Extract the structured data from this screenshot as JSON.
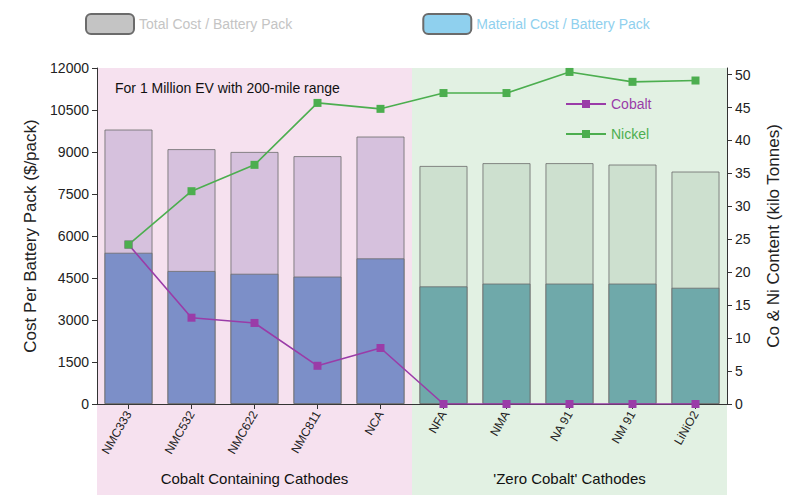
{
  "chart_data": {
    "type": "bar",
    "categories": [
      "NMC333",
      "NMC532",
      "NMC622",
      "NMC811",
      "NCA",
      "NFA",
      "NMA",
      "NA 91",
      "NM 91",
      "LiNiO2"
    ],
    "series": [
      {
        "name": "Total Cost / Battery Pack",
        "type": "bar",
        "color": "#c4c4c4",
        "colors": [
          "#d6c1dd",
          "#d6c1dd",
          "#d6c1dd",
          "#d6c1dd",
          "#d6c1dd",
          "#cde0cf",
          "#cde0cf",
          "#cde0cf",
          "#cde0cf",
          "#cde0cf"
        ],
        "values": [
          9800,
          9100,
          9000,
          8850,
          9550,
          8500,
          8600,
          8600,
          8550,
          8300
        ]
      },
      {
        "name": "Material Cost / Battery Pack",
        "type": "bar",
        "color": "#8fd0ee",
        "colors": [
          "#7c8fc8",
          "#7c8fc8",
          "#7c8fc8",
          "#7c8fc8",
          "#7c8fc8",
          "#6fa9aa",
          "#6fa9aa",
          "#6fa9aa",
          "#6fa9aa",
          "#6fa9aa"
        ],
        "values": [
          5400,
          4750,
          4650,
          4550,
          5200,
          4200,
          4300,
          4300,
          4300,
          4150
        ]
      },
      {
        "name": "Cobalt",
        "type": "line",
        "axis": "y2",
        "color": "#9a3ca8",
        "marker": "square",
        "values": [
          24.2,
          13.1,
          12.3,
          5.8,
          8.5,
          0,
          0,
          0,
          0,
          0
        ]
      },
      {
        "name": "Nickel",
        "type": "line",
        "axis": "y2",
        "color": "#4cae4f",
        "marker": "square",
        "values": [
          24.2,
          32.3,
          36.3,
          45.7,
          44.8,
          47.2,
          47.2,
          50.4,
          48.9,
          49.1
        ]
      }
    ],
    "ylabel": "Cost Per Battery Pack ($/pack)",
    "y2label": "Co & Ni Content (kilo Tonnes)",
    "ylim": [
      0,
      12000
    ],
    "yticks": [
      0,
      1500,
      3000,
      4500,
      6000,
      7500,
      9000,
      10500,
      12000
    ],
    "y2lim": [
      0,
      51
    ],
    "y2ticks": [
      0,
      5,
      10,
      15,
      20,
      25,
      30,
      35,
      40,
      45,
      50
    ],
    "annotations": [
      {
        "text": "For 1 Million EV with 200-mile range"
      }
    ],
    "regions": [
      {
        "label": "Cobalt Containing Cathodes",
        "categories": [
          "NMC333",
          "NMC532",
          "NMC622",
          "NMC811",
          "NCA"
        ],
        "color": "#f6e1ef"
      },
      {
        "label": "'Zero Cobalt' Cathodes",
        "categories": [
          "NFA",
          "NMA",
          "NA 91",
          "NM 91",
          "LiNiO2"
        ],
        "color": "#e2f1e3"
      }
    ],
    "grid": false,
    "legend": "top"
  }
}
